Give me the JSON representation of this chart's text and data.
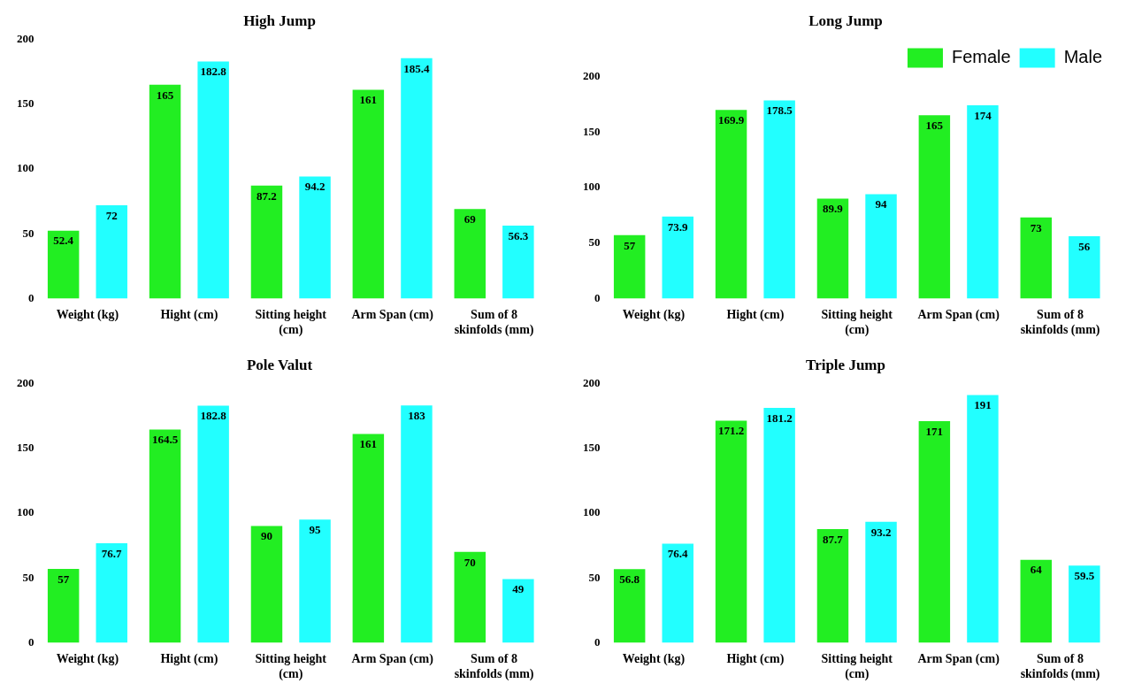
{
  "chart_data": [
    {
      "type": "bar",
      "title": "High Jump",
      "categories": [
        "Weight (kg)",
        "Hight (cm)",
        "Sitting height (cm)",
        "Arm Span (cm)",
        "Sum of 8 skinfolds (mm)"
      ],
      "series": [
        {
          "color": "#22ee22",
          "values": [
            52.4,
            165,
            87.2,
            161,
            69
          ]
        },
        {
          "color": "#22ffff",
          "values": [
            72,
            182.8,
            94.2,
            185.4,
            56.3
          ]
        }
      ],
      "ylim": [
        0,
        200
      ],
      "yticks": [
        0,
        50,
        100,
        150,
        200
      ],
      "grid": false,
      "legend": false,
      "data_labels": true
    },
    {
      "type": "bar",
      "title": "Long Jump",
      "categories": [
        "Weight (kg)",
        "Hight (cm)",
        "Sitting height (cm)",
        "Arm Span (cm)",
        "Sum of 8 skinfolds (mm)"
      ],
      "series": [
        {
          "name": "Female",
          "color": "#22ee22",
          "values": [
            57,
            169.9,
            89.9,
            165,
            73
          ]
        },
        {
          "name": "Male",
          "color": "#22ffff",
          "values": [
            73.9,
            178.5,
            94,
            174,
            56
          ]
        }
      ],
      "ylim": [
        0,
        200
      ],
      "yticks": [
        0,
        50,
        100,
        150,
        200
      ],
      "grid": false,
      "legend": "top right",
      "data_labels": true
    },
    {
      "type": "bar",
      "title": "Pole Valut",
      "categories": [
        "Weight (kg)",
        "Hight (cm)",
        "Sitting height (cm)",
        "Arm Span (cm)",
        "Sum of 8 skinfolds (mm)"
      ],
      "series": [
        {
          "color": "#22ee22",
          "values": [
            57,
            164.5,
            90,
            161,
            70
          ]
        },
        {
          "color": "#22ffff",
          "values": [
            76.7,
            182.8,
            95,
            183,
            49
          ]
        }
      ],
      "ylim": [
        0,
        200
      ],
      "yticks": [
        0,
        50,
        100,
        150,
        200
      ],
      "grid": false,
      "legend": false,
      "data_labels": true
    },
    {
      "type": "bar",
      "title": "Triple Jump",
      "categories": [
        "Weight (kg)",
        "Hight (cm)",
        "Sitting height (cm)",
        "Arm Span (cm)",
        "Sum of 8 skinfolds (mm)"
      ],
      "series": [
        {
          "color": "#22ee22",
          "values": [
            56.8,
            171.2,
            87.7,
            171,
            64
          ]
        },
        {
          "color": "#22ffff",
          "values": [
            76.4,
            181.2,
            93.2,
            191,
            59.5
          ]
        }
      ],
      "ylim": [
        0,
        200
      ],
      "yticks": [
        0,
        50,
        100,
        150,
        200
      ],
      "grid": false,
      "legend": false,
      "data_labels": true
    }
  ]
}
